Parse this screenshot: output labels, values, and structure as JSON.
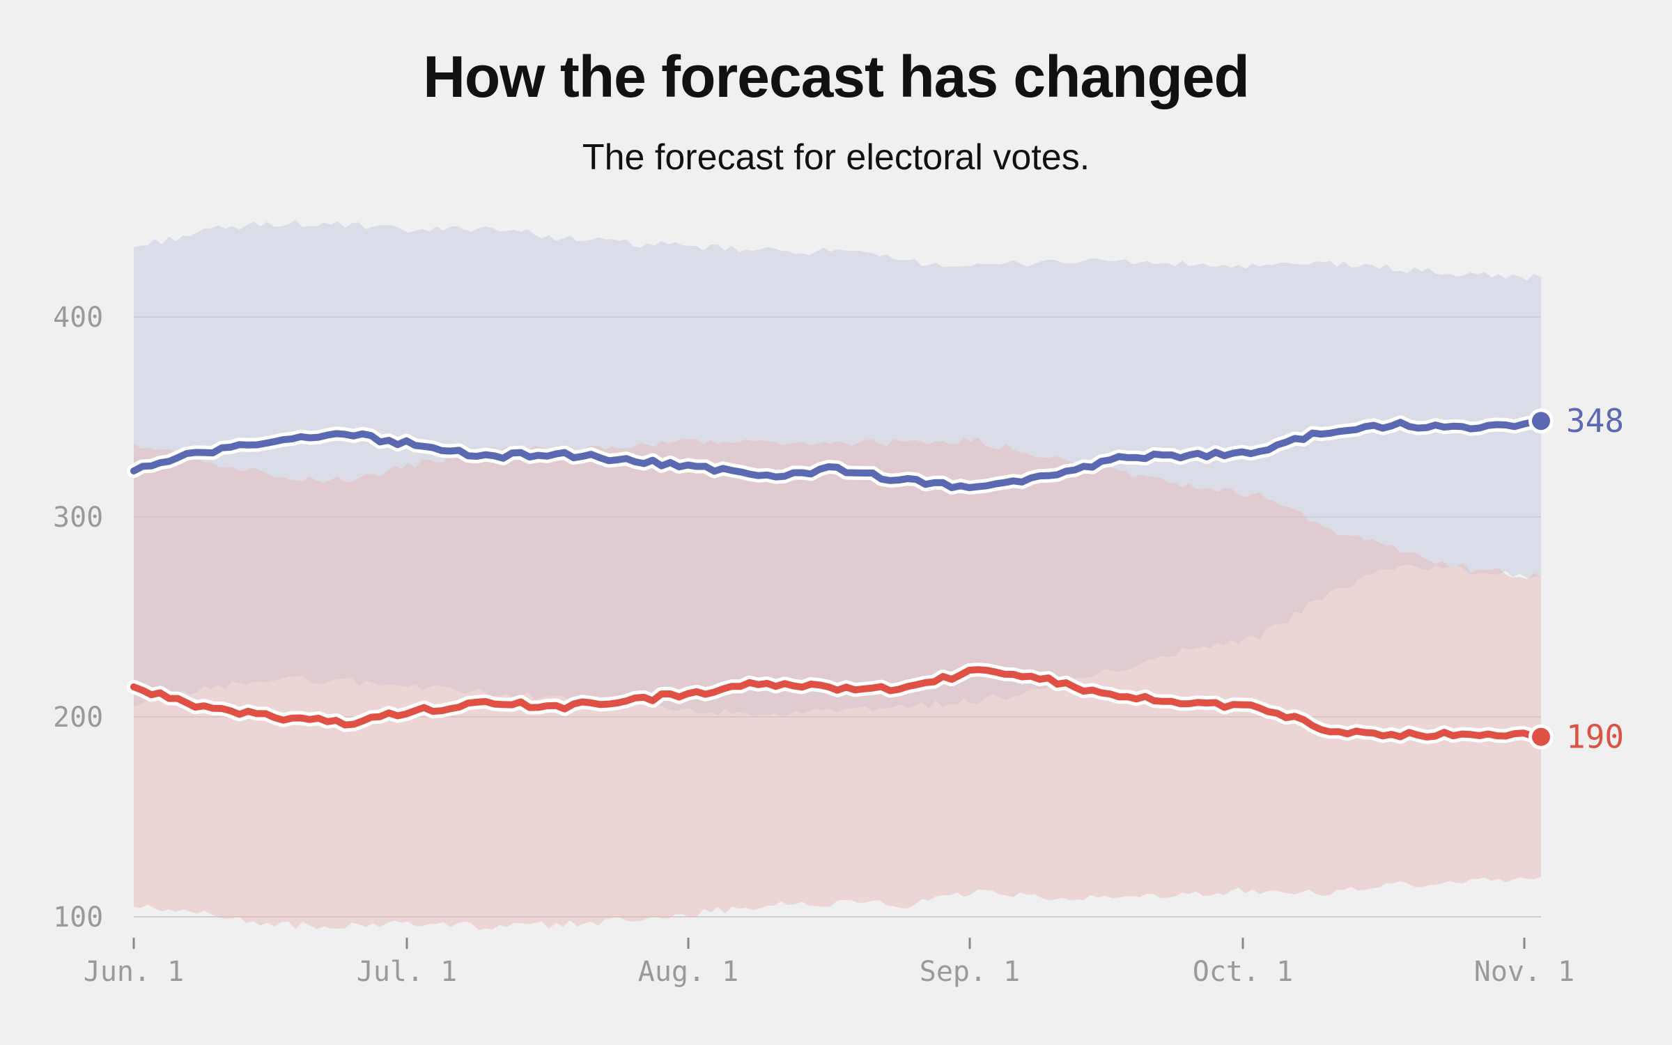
{
  "title": "How the forecast has changed",
  "subtitle": "The forecast for electoral votes.",
  "chart_data": {
    "type": "line",
    "title": "How the forecast has changed",
    "subtitle": "The forecast for electoral votes.",
    "xlabel": "",
    "ylabel": "",
    "x_ticks": [
      "Jun. 1",
      "Jul. 1",
      "Aug. 1",
      "Sep. 1",
      "Oct. 1",
      "Nov. 1"
    ],
    "y_ticks": [
      100,
      200,
      300,
      400
    ],
    "ylim": [
      100,
      440
    ],
    "grid": true,
    "legend": "none",
    "x": [
      "Jun. 1",
      "Jun. 8",
      "Jun. 15",
      "Jun. 22",
      "Jul. 1",
      "Jul. 8",
      "Jul. 15",
      "Jul. 22",
      "Aug. 1",
      "Aug. 8",
      "Aug. 15",
      "Aug. 22",
      "Sep. 1",
      "Sep. 8",
      "Sep. 15",
      "Sep. 22",
      "Oct. 1",
      "Oct. 8",
      "Oct. 15",
      "Oct. 22",
      "Nov. 1"
    ],
    "series": [
      {
        "name": "",
        "color": "#5b69b3",
        "end_value": "348",
        "values": [
          323,
          333,
          337,
          342,
          336,
          330,
          332,
          328,
          325,
          321,
          324,
          318,
          314,
          320,
          329,
          331,
          333,
          343,
          346,
          344,
          348
        ],
        "band_high": [
          435,
          443,
          447,
          446,
          443,
          445,
          440,
          437,
          435,
          433,
          433,
          428,
          425,
          428,
          428,
          426,
          425,
          427,
          424,
          421,
          420
        ],
        "band_low": [
          205,
          214,
          219,
          218,
          215,
          212,
          210,
          206,
          203,
          200,
          203,
          205,
          208,
          214,
          224,
          234,
          240,
          262,
          276,
          273,
          270
        ]
      },
      {
        "name": "",
        "color": "#e05145",
        "end_value": "190",
        "values": [
          215,
          205,
          200,
          197,
          203,
          207,
          205,
          208,
          212,
          217,
          214,
          214,
          224,
          218,
          210,
          207,
          205,
          193,
          191,
          192,
          190
        ],
        "band_high": [
          337,
          328,
          321,
          318,
          326,
          334,
          334,
          335,
          338,
          337,
          337,
          337,
          338,
          330,
          322,
          315,
          311,
          294,
          283,
          274,
          270
        ],
        "band_low": [
          105,
          102,
          96,
          95,
          97,
          95,
          96,
          98,
          102,
          106,
          107,
          106,
          112,
          109,
          110,
          112,
          113,
          112,
          116,
          118,
          120
        ]
      }
    ]
  }
}
